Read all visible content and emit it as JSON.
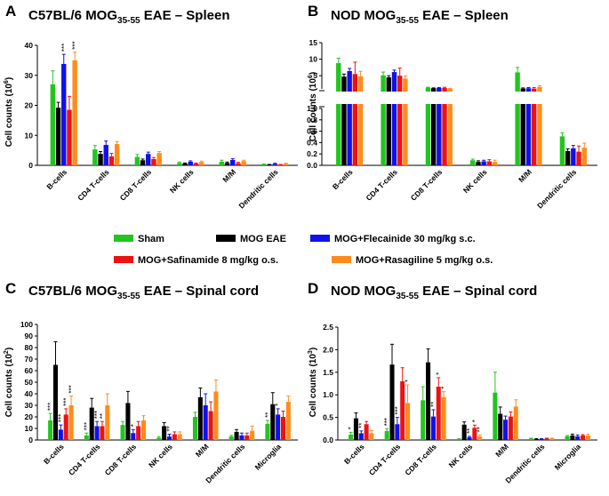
{
  "colors": {
    "sham": "#22c51e",
    "mog": "#000000",
    "flec": "#1010ee",
    "safi": "#ee1111",
    "rasa": "#ff8c1a"
  },
  "legend": {
    "items": [
      {
        "key": "sham",
        "label": "Sham"
      },
      {
        "key": "mog",
        "label": "MOG EAE"
      },
      {
        "key": "flec",
        "label": "MOG+Flecainide 30 mg/kg s.c."
      },
      {
        "key": "safi",
        "label": "MOG+Safinamide 8 mg/kg o.s."
      },
      {
        "key": "rasa",
        "label": "MOG+Rasagiline 5 mg/kg o.s."
      }
    ]
  },
  "chart_data": [
    {
      "panel": "A",
      "type": "bar",
      "title": {
        "pre": "C57BL/6 MOG",
        "sub": "35-55",
        "post": " EAE – Spleen"
      },
      "ylabel": {
        "pre": "Cell counts (10",
        "sup": "6",
        "post": ")"
      },
      "ylim": [
        0,
        40
      ],
      "yticks": [
        "0",
        "10",
        "20",
        "30",
        "40"
      ],
      "categories": [
        "B-cells",
        "CD4 T-cells",
        "CD8 T-cells",
        "NK cells",
        "M/M",
        "Dendritic cells"
      ],
      "series": [
        {
          "name": "Sham",
          "key": "sham",
          "values": [
            27,
            5.3,
            2.8,
            0.8,
            1.2,
            0.3
          ],
          "errors": [
            4.5,
            1.3,
            0.8,
            0.3,
            0.5,
            0.15
          ]
        },
        {
          "name": "MOG EAE",
          "key": "mog",
          "values": [
            19.2,
            3.8,
            1.7,
            0.6,
            0.8,
            0.2
          ],
          "errors": [
            1.8,
            0.8,
            0.4,
            0.2,
            0.3,
            0.1
          ]
        },
        {
          "name": "MOG+Flecainide 30 mg/kg s.c.",
          "key": "flec",
          "values": [
            33.8,
            6.8,
            3.8,
            1.2,
            1.8,
            0.5
          ],
          "errors": [
            3.2,
            1.3,
            0.6,
            0.3,
            0.4,
            0.2
          ]
        },
        {
          "name": "MOG+Safinamide 8 mg/kg o.s.",
          "key": "safi",
          "values": [
            18.5,
            3.0,
            2.1,
            0.6,
            0.7,
            0.2
          ],
          "errors": [
            4.5,
            1.0,
            0.5,
            0.2,
            0.3,
            0.1
          ]
        },
        {
          "name": "MOG+Rasagiline 5 mg/kg o.s.",
          "key": "rasa",
          "values": [
            35,
            7.1,
            4.1,
            1.1,
            1.4,
            0.5
          ],
          "errors": [
            2.7,
            0.8,
            0.5,
            0.3,
            0.3,
            0.2
          ]
        }
      ],
      "annotations": [
        {
          "category": 0,
          "series": 2,
          "text": "***"
        },
        {
          "category": 0,
          "series": 4,
          "text": "***"
        }
      ]
    },
    {
      "panel": "B",
      "type": "bar",
      "title": {
        "pre": "NOD MOG",
        "sub": "35-55",
        "post": " EAE – Spleen"
      },
      "ylabel": {
        "pre": "Cell counts (10",
        "sup": "6",
        "post": ")"
      },
      "broken_axis": true,
      "upper_ylim": [
        1,
        15
      ],
      "upper_yticks": [
        "5",
        "10",
        "15"
      ],
      "lower_ylim": [
        0,
        1.0
      ],
      "lower_yticks": [
        "0.0",
        "0.2",
        "0.4",
        "0.6",
        "0.8",
        "1.0"
      ],
      "categories": [
        "B-cells",
        "CD4 T-cells",
        "CD8 T-cells",
        "NK cells",
        "M/M",
        "Dendritic cells"
      ],
      "series": [
        {
          "name": "Sham",
          "key": "sham",
          "values": [
            8.8,
            5.1,
            1.4,
            0.09,
            6.0,
            0.51
          ],
          "errors": [
            1.5,
            1.0,
            0.1,
            0.02,
            1.5,
            0.06
          ]
        },
        {
          "name": "MOG EAE",
          "key": "mog",
          "values": [
            4.7,
            4.5,
            1.2,
            0.06,
            1.1,
            0.25
          ],
          "errors": [
            0.8,
            0.5,
            0.1,
            0.02,
            0.2,
            0.04
          ]
        },
        {
          "name": "MOG+Flecainide 30 mg/kg s.c.",
          "key": "flec",
          "values": [
            6.4,
            6.1,
            1.3,
            0.07,
            1.2,
            0.3
          ],
          "errors": [
            0.8,
            0.6,
            0.1,
            0.02,
            0.2,
            0.05
          ]
        },
        {
          "name": "MOG+Safinamide 8 mg/kg o.s.",
          "key": "safi",
          "values": [
            5.5,
            5.0,
            1.3,
            0.07,
            1.1,
            0.24
          ],
          "errors": [
            3.6,
            2.3,
            0.2,
            0.03,
            0.3,
            0.1
          ]
        },
        {
          "name": "MOG+Rasagiline 5 mg/kg o.s.",
          "key": "rasa",
          "values": [
            4.8,
            4.1,
            1.1,
            0.06,
            1.6,
            0.31
          ],
          "errors": [
            1.5,
            0.8,
            0.1,
            0.03,
            0.4,
            0.08
          ]
        }
      ],
      "annotations": []
    },
    {
      "panel": "C",
      "type": "bar",
      "title": {
        "pre": "C57BL/6 MOG",
        "sub": "35-55",
        "post": " EAE – Spinal cord"
      },
      "ylabel": {
        "pre": "Cell counts (10",
        "sup": "2",
        "post": ")"
      },
      "ylim": [
        0,
        100
      ],
      "yticks": [
        "0",
        "10",
        "20",
        "30",
        "40",
        "50",
        "60",
        "70",
        "80",
        "90",
        "100"
      ],
      "categories": [
        "B-cells",
        "CD4 T-cells",
        "CD8 T-cells",
        "NK cells",
        "M/M",
        "Dendritic cells",
        "Microglia"
      ],
      "series": [
        {
          "name": "Sham",
          "key": "sham",
          "values": [
            17,
            4,
            13,
            2,
            20,
            3,
            14
          ],
          "errors": [
            6,
            2,
            3,
            1,
            4,
            1,
            3
          ]
        },
        {
          "name": "MOG EAE",
          "key": "mog",
          "values": [
            65,
            28,
            32,
            12,
            37,
            7,
            31
          ],
          "errors": [
            20,
            8,
            10,
            3,
            8,
            2,
            10
          ]
        },
        {
          "name": "MOG+Flecainide 30 mg/kg s.c.",
          "key": "flec",
          "values": [
            9,
            12,
            6,
            3,
            30,
            4,
            22
          ],
          "errors": [
            4,
            4,
            3,
            2,
            10,
            2,
            5
          ]
        },
        {
          "name": "MOG+Safinamide 8 mg/kg o.s.",
          "key": "safi",
          "values": [
            22,
            12,
            12,
            5,
            25,
            4,
            20
          ],
          "errors": [
            5,
            4,
            4,
            2,
            8,
            2,
            5
          ]
        },
        {
          "name": "MOG+Rasagiline 5 mg/kg o.s.",
          "key": "rasa",
          "values": [
            30,
            30,
            17,
            5,
            42,
            8,
            33
          ],
          "errors": [
            8,
            10,
            4,
            2,
            10,
            4,
            5
          ]
        }
      ],
      "annotations": [
        {
          "category": 0,
          "series": 0,
          "text": "***"
        },
        {
          "category": 0,
          "series": 2,
          "text": "***"
        },
        {
          "category": 0,
          "series": 3,
          "text": "***"
        },
        {
          "category": 0,
          "series": 4,
          "text": "***"
        },
        {
          "category": 1,
          "series": 0,
          "text": "***"
        },
        {
          "category": 1,
          "series": 2,
          "text": "***"
        },
        {
          "category": 1,
          "series": 3,
          "text": "**"
        },
        {
          "category": 2,
          "series": 2,
          "text": "*"
        },
        {
          "category": 3,
          "series": 2,
          "text": "**"
        },
        {
          "category": 6,
          "series": 0,
          "text": "**"
        },
        {
          "category": 6,
          "series": 2,
          "text": "*"
        }
      ]
    },
    {
      "panel": "D",
      "type": "bar",
      "title": {
        "pre": "NOD MOG",
        "sub": "35-55",
        "post": " EAE – Spinal cord"
      },
      "ylabel": {
        "pre": "Cell counts (10",
        "sup": "3",
        "post": ")"
      },
      "ylim": [
        0,
        2.5
      ],
      "yticks": [
        "0.0",
        "0.5",
        "1.0",
        "1.5",
        "2.0",
        "2.5"
      ],
      "categories": [
        "B-cells",
        "CD4 T-cells",
        "CD8 T-cells",
        "NK cells",
        "M/M",
        "Dendritic cells",
        "Microglia"
      ],
      "series": [
        {
          "name": "Sham",
          "key": "sham",
          "values": [
            0.12,
            0.2,
            0.88,
            0.02,
            1.05,
            0.03,
            0.08
          ],
          "errors": [
            0.05,
            0.05,
            0.3,
            0.01,
            0.45,
            0.01,
            0.02
          ]
        },
        {
          "name": "MOG EAE",
          "key": "mog",
          "values": [
            0.48,
            1.67,
            1.72,
            0.34,
            0.58,
            0.02,
            0.1
          ],
          "errors": [
            0.12,
            0.45,
            0.3,
            0.06,
            0.15,
            0.01,
            0.03
          ]
        },
        {
          "name": "MOG+Flecainide 30 mg/kg s.c.",
          "key": "flec",
          "values": [
            0.15,
            0.35,
            0.52,
            0.06,
            0.45,
            0.02,
            0.08
          ],
          "errors": [
            0.05,
            0.15,
            0.15,
            0.02,
            0.08,
            0.01,
            0.03
          ]
        },
        {
          "name": "MOG+Safinamide 8 mg/kg o.s.",
          "key": "safi",
          "values": [
            0.35,
            1.3,
            1.18,
            0.27,
            0.52,
            0.03,
            0.1
          ],
          "errors": [
            0.06,
            0.3,
            0.2,
            0.06,
            0.1,
            0.01,
            0.02
          ]
        },
        {
          "name": "MOG+Rasagiline 5 mg/kg o.s.",
          "key": "rasa",
          "values": [
            0.15,
            0.82,
            0.95,
            0.08,
            0.74,
            0.03,
            0.1
          ],
          "errors": [
            0.06,
            0.4,
            0.12,
            0.03,
            0.15,
            0.01,
            0.03
          ]
        }
      ],
      "annotations": [
        {
          "category": 0,
          "series": 0,
          "text": "*"
        },
        {
          "category": 0,
          "series": 2,
          "text": "**"
        },
        {
          "category": 1,
          "series": 0,
          "text": "***"
        },
        {
          "category": 1,
          "series": 2,
          "text": "***"
        },
        {
          "category": 1,
          "series": 4,
          "text": "*"
        },
        {
          "category": 2,
          "series": 2,
          "text": "**"
        },
        {
          "category": 2,
          "series": 3,
          "text": "*"
        },
        {
          "category": 2,
          "series": 4,
          "text": "*"
        },
        {
          "category": 3,
          "series": 2,
          "text": "**"
        },
        {
          "category": 3,
          "series": 3,
          "text": "*"
        },
        {
          "category": 3,
          "series": 4,
          "text": "**"
        }
      ]
    }
  ],
  "panel_letters": [
    "A",
    "B",
    "C",
    "D"
  ]
}
